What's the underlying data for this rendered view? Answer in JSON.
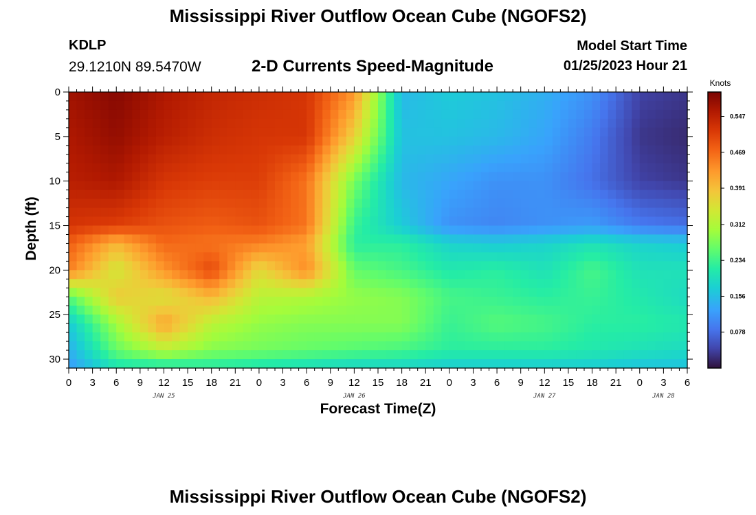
{
  "header": {
    "title": "Mississippi River Outflow Ocean Cube (NGOFS2)",
    "station": "KDLP",
    "coordinates": "29.1210N  89.5470W",
    "subtitle": "2-D Currents Speed-Magnitude",
    "model_start_label": "Model Start Time",
    "model_start_value": "01/25/2023 Hour 21"
  },
  "footer": {
    "title": "Mississippi River Outflow Ocean Cube (NGOFS2)"
  },
  "chart_data": {
    "type": "heatmap",
    "title": "2-D Currents Speed-Magnitude",
    "xlabel": "Forecast Time(Z)",
    "ylabel": "Depth (ft)",
    "x_tick_labels": [
      "0",
      "3",
      "6",
      "9",
      "12",
      "15",
      "18",
      "21",
      "0",
      "3",
      "6",
      "9",
      "12",
      "15",
      "18",
      "21",
      "0",
      "3",
      "6",
      "9",
      "12",
      "15",
      "18",
      "21",
      "0",
      "3",
      "6"
    ],
    "x_range_hours": [
      0,
      78
    ],
    "day_labels": [
      {
        "label": "JAN 25",
        "hour": 12
      },
      {
        "label": "JAN 26",
        "hour": 36
      },
      {
        "label": "JAN 27",
        "hour": 60
      },
      {
        "label": "JAN 28",
        "hour": 75
      }
    ],
    "y_ticks": [
      0,
      5,
      10,
      15,
      20,
      25,
      30
    ],
    "y_range": [
      0,
      31
    ],
    "y_inverted": true,
    "colorbar": {
      "units": "Knots",
      "range": [
        0.0,
        0.6
      ],
      "tick_values": [
        "0.547",
        "0.469",
        "0.391",
        "0.312",
        "0.234",
        "0.156",
        "0.078"
      ]
    },
    "times_hours": [
      0,
      6,
      12,
      18,
      24,
      30,
      36,
      42,
      48,
      54,
      60,
      66,
      72,
      78
    ],
    "depths_ft": [
      0,
      5,
      10,
      15,
      17,
      20,
      23,
      26,
      29,
      31
    ],
    "speed_knots": [
      [
        0.57,
        0.59,
        0.56,
        0.54,
        0.53,
        0.52,
        0.43,
        0.15,
        0.17,
        0.16,
        0.14,
        0.11,
        0.04,
        0.03
      ],
      [
        0.56,
        0.58,
        0.55,
        0.53,
        0.52,
        0.52,
        0.37,
        0.16,
        0.16,
        0.15,
        0.13,
        0.09,
        0.03,
        0.02
      ],
      [
        0.55,
        0.56,
        0.52,
        0.51,
        0.51,
        0.46,
        0.27,
        0.15,
        0.13,
        0.11,
        0.11,
        0.08,
        0.04,
        0.03
      ],
      [
        0.52,
        0.51,
        0.49,
        0.48,
        0.49,
        0.46,
        0.23,
        0.17,
        0.11,
        0.1,
        0.11,
        0.12,
        0.09,
        0.08
      ],
      [
        0.48,
        0.4,
        0.47,
        0.46,
        0.45,
        0.42,
        0.22,
        0.22,
        0.18,
        0.17,
        0.18,
        0.2,
        0.18,
        0.17
      ],
      [
        0.45,
        0.34,
        0.43,
        0.5,
        0.36,
        0.44,
        0.26,
        0.24,
        0.21,
        0.22,
        0.2,
        0.24,
        0.2,
        0.2
      ],
      [
        0.25,
        0.38,
        0.35,
        0.4,
        0.32,
        0.31,
        0.29,
        0.28,
        0.24,
        0.23,
        0.22,
        0.23,
        0.21,
        0.19
      ],
      [
        0.17,
        0.3,
        0.42,
        0.32,
        0.29,
        0.28,
        0.28,
        0.28,
        0.23,
        0.25,
        0.24,
        0.22,
        0.22,
        0.21
      ],
      [
        0.14,
        0.26,
        0.32,
        0.28,
        0.27,
        0.26,
        0.25,
        0.24,
        0.22,
        0.22,
        0.22,
        0.21,
        0.2,
        0.19
      ],
      [
        0.12,
        0.2,
        0.2,
        0.21,
        0.2,
        0.19,
        0.18,
        0.18,
        0.17,
        0.17,
        0.17,
        0.17,
        0.16,
        0.16
      ]
    ]
  }
}
